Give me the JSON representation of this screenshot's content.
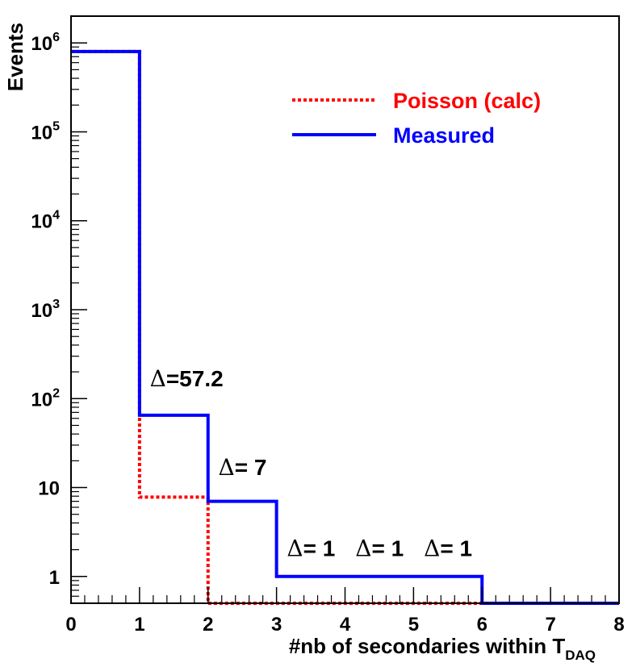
{
  "chart_data": {
    "type": "line",
    "step": true,
    "title": "",
    "xlabel": "#nb of secondaries within T",
    "xlabel_sub": "DAQ",
    "ylabel": "Events",
    "yscale": "log",
    "xlim": [
      0,
      8
    ],
    "ylim": [
      0.5,
      2000000
    ],
    "x_ticks": [
      "0",
      "1",
      "2",
      "3",
      "4",
      "5",
      "6",
      "7",
      "8"
    ],
    "y_ticks": [
      {
        "value": 1,
        "base": "1",
        "exp": ""
      },
      {
        "value": 10,
        "base": "10",
        "exp": ""
      },
      {
        "value": 100,
        "base": "10",
        "exp": "2"
      },
      {
        "value": 1000,
        "base": "10",
        "exp": "3"
      },
      {
        "value": 10000,
        "base": "10",
        "exp": "4"
      },
      {
        "value": 100000,
        "base": "10",
        "exp": "5"
      },
      {
        "value": 1000000,
        "base": "10",
        "exp": "6"
      }
    ],
    "bin_edges": [
      0,
      1,
      2,
      3,
      4,
      5,
      6,
      7,
      8
    ],
    "series": [
      {
        "name": "Poisson (calc)",
        "color": "#ff0000",
        "style": "dotted",
        "values": [
          800000,
          7.8,
          0.5,
          0.5,
          0.5,
          0.5,
          0.5,
          0.5
        ]
      },
      {
        "name": "Measured",
        "color": "#0000ff",
        "style": "solid",
        "values": [
          800000,
          65,
          7,
          1,
          1,
          1,
          0.5,
          0.5
        ]
      }
    ],
    "annotations": [
      {
        "symbol": "Δ",
        "text": "=57.2",
        "x": 1.15,
        "y": 170
      },
      {
        "symbol": "Δ",
        "text": "= 7",
        "x": 2.15,
        "y": 17
      },
      {
        "symbol": "Δ",
        "text": "= 1",
        "x": 3.15,
        "y": 2.1
      },
      {
        "symbol": "Δ",
        "text": "= 1",
        "x": 4.15,
        "y": 2.1
      },
      {
        "symbol": "Δ",
        "text": "= 1",
        "x": 5.15,
        "y": 2.1
      }
    ],
    "legend": {
      "position": "top-right"
    }
  }
}
